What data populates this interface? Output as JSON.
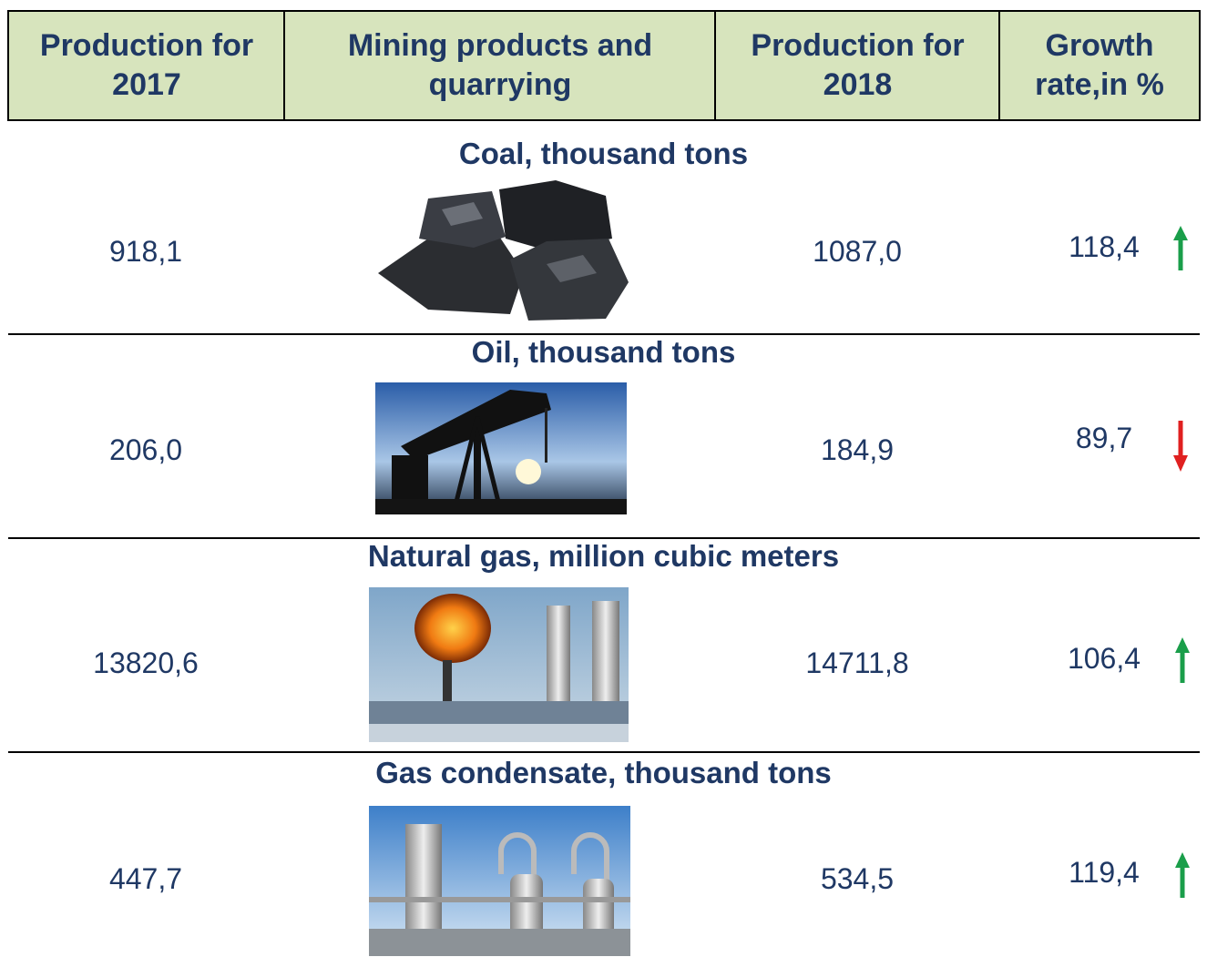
{
  "table": {
    "header": [
      "Production for 2017",
      "Mining products and quarrying",
      "Production for 2018",
      "Growth rate,in %"
    ],
    "sections": [
      {
        "title": "Coal, thousand tons",
        "production_2017": "918,1",
        "production_2018": "1087,0",
        "growth": "118,4"
      },
      {
        "title": "Oil, thousand tons",
        "production_2017": "206,0",
        "production_2018": "184,9",
        "growth": "89,7"
      },
      {
        "title": "Natural gas, million cubic meters",
        "production_2017": "13820,6",
        "production_2018": "14711,8",
        "growth": "106,4"
      },
      {
        "title": "Gas condensate, thousand tons",
        "production_2017": "447,7",
        "production_2018": "534,5",
        "growth": "119,4"
      }
    ]
  }
}
